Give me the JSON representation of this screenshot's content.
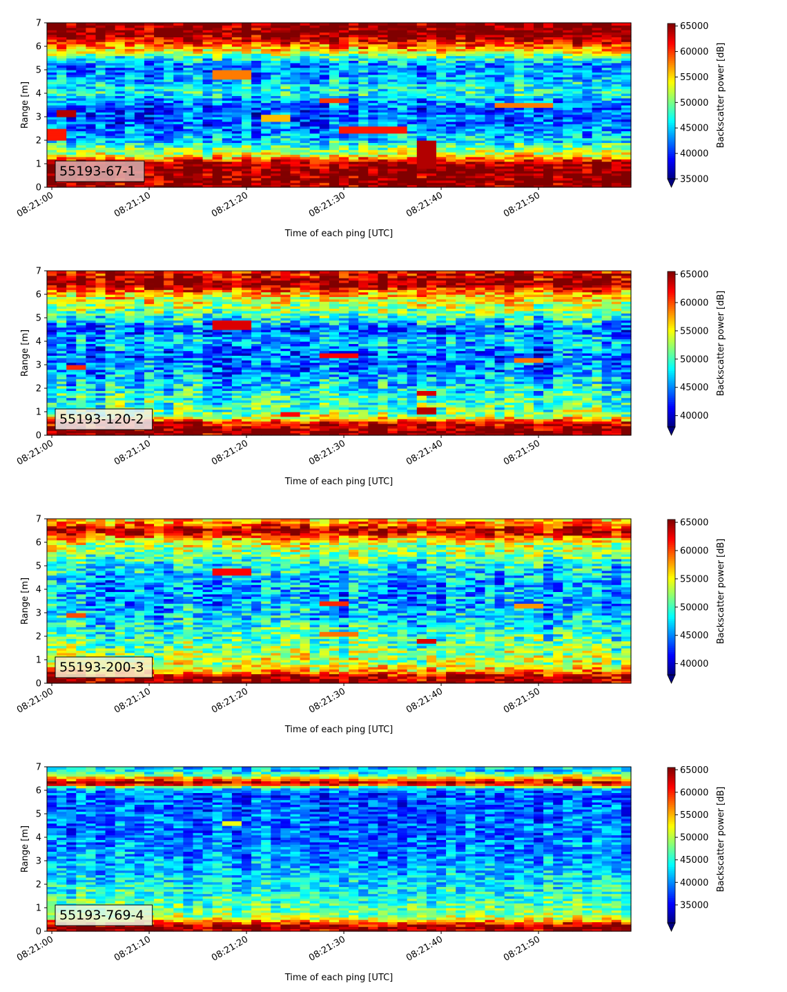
{
  "chart_data": [
    {
      "type": "heatmap",
      "label": "55193-67-1",
      "label_box_color": "#dcb0b0",
      "xlabel": "Time of each ping [UTC]",
      "ylabel": "Range [m]",
      "xticks": [
        "08:21:00",
        "08:21:10",
        "08:21:20",
        "08:21:30",
        "08:21:40",
        "08:21:50"
      ],
      "xlim_seconds": [
        -0.5,
        59.5
      ],
      "ylim": [
        0,
        7
      ],
      "yticks": [
        0,
        1,
        2,
        3,
        4,
        5,
        6,
        7
      ],
      "colorbar": {
        "label": "Backscatter power [dB]",
        "min": 35000,
        "max": 65500,
        "ticks": [
          35000,
          40000,
          45000,
          50000,
          55000,
          60000,
          65000
        ],
        "extend": "min"
      },
      "colormap": "jet",
      "range_profile": [
        [
          0.0,
          64500
        ],
        [
          0.3,
          65500
        ],
        [
          0.7,
          65500
        ],
        [
          1.05,
          64000
        ],
        [
          1.3,
          55000
        ],
        [
          1.7,
          49000
        ],
        [
          2.0,
          45000
        ],
        [
          2.6,
          42000
        ],
        [
          3.2,
          41000
        ],
        [
          3.6,
          42500
        ],
        [
          4.0,
          47000
        ],
        [
          4.4,
          45500
        ],
        [
          4.8,
          43000
        ],
        [
          5.2,
          42500
        ],
        [
          5.5,
          47500
        ],
        [
          5.9,
          56000
        ],
        [
          6.25,
          62000
        ],
        [
          6.5,
          65500
        ],
        [
          7.0,
          65500
        ]
      ],
      "features": [
        {
          "t": [
            1,
            3
          ],
          "r": [
            3.0,
            3.3
          ],
          "v": 64000
        },
        {
          "t": [
            0,
            2
          ],
          "r": [
            2.0,
            2.5
          ],
          "v": 61000
        },
        {
          "t": [
            28,
            31
          ],
          "r": [
            3.6,
            3.8
          ],
          "v": 60000
        },
        {
          "t": [
            30,
            37
          ],
          "r": [
            2.3,
            2.6
          ],
          "v": 61000
        },
        {
          "t": [
            46,
            52
          ],
          "r": [
            3.4,
            3.6
          ],
          "v": 58000
        },
        {
          "t": [
            38,
            40
          ],
          "r": [
            0.8,
            2.0
          ],
          "v": 64000
        },
        {
          "t": [
            17,
            21
          ],
          "r": [
            4.6,
            5.0
          ],
          "v": 58000
        },
        {
          "t": [
            22,
            25
          ],
          "r": [
            2.8,
            3.1
          ],
          "v": 56000
        }
      ]
    },
    {
      "type": "heatmap",
      "label": "55193-120-2",
      "label_box_color": "#eeeeee",
      "xlabel": "Time of each ping [UTC]",
      "ylabel": "Range [m]",
      "xticks": [
        "08:21:00",
        "08:21:10",
        "08:21:20",
        "08:21:30",
        "08:21:40",
        "08:21:50"
      ],
      "xlim_seconds": [
        -0.5,
        59.5
      ],
      "ylim": [
        0,
        7
      ],
      "yticks": [
        0,
        1,
        2,
        3,
        4,
        5,
        6,
        7
      ],
      "colorbar": {
        "label": "Backscatter power [dB]",
        "min": 38000,
        "max": 65500,
        "ticks": [
          40000,
          45000,
          50000,
          55000,
          60000,
          65000
        ],
        "extend": "min"
      },
      "colormap": "jet",
      "range_profile": [
        [
          0.0,
          65500
        ],
        [
          0.25,
          65500
        ],
        [
          0.55,
          63000
        ],
        [
          0.8,
          53000
        ],
        [
          1.2,
          50500
        ],
        [
          1.8,
          49000
        ],
        [
          2.3,
          47000
        ],
        [
          2.9,
          45000
        ],
        [
          3.5,
          44500
        ],
        [
          4.0,
          47000
        ],
        [
          4.5,
          44000
        ],
        [
          4.9,
          48000
        ],
        [
          5.3,
          52000
        ],
        [
          5.8,
          55000
        ],
        [
          6.1,
          58000
        ],
        [
          6.4,
          65500
        ],
        [
          6.7,
          64000
        ],
        [
          7.0,
          62000
        ]
      ],
      "features": [
        {
          "t": [
            17,
            21
          ],
          "r": [
            4.5,
            4.9
          ],
          "v": 63000
        },
        {
          "t": [
            2,
            4
          ],
          "r": [
            2.8,
            3.0
          ],
          "v": 61000
        },
        {
          "t": [
            28,
            32
          ],
          "r": [
            3.3,
            3.5
          ],
          "v": 62000
        },
        {
          "t": [
            24,
            26
          ],
          "r": [
            0.8,
            1.0
          ],
          "v": 62000
        },
        {
          "t": [
            38,
            40
          ],
          "r": [
            0.9,
            1.2
          ],
          "v": 64000
        },
        {
          "t": [
            38,
            40
          ],
          "r": [
            1.7,
            1.9
          ],
          "v": 63000
        },
        {
          "t": [
            48,
            51
          ],
          "r": [
            3.1,
            3.3
          ],
          "v": 59000
        }
      ]
    },
    {
      "type": "heatmap",
      "label": "55193-200-3",
      "label_box_color": "#f4f0d0",
      "xlabel": "Time of each ping [UTC]",
      "ylabel": "Range [m]",
      "xticks": [
        "08:21:00",
        "08:21:10",
        "08:21:20",
        "08:21:30",
        "08:21:40",
        "08:21:50"
      ],
      "xlim_seconds": [
        -0.5,
        59.5
      ],
      "ylim": [
        0,
        7
      ],
      "yticks": [
        0,
        1,
        2,
        3,
        4,
        5,
        6,
        7
      ],
      "colorbar": {
        "label": "Backscatter power [dB]",
        "min": 38000,
        "max": 65500,
        "ticks": [
          40000,
          45000,
          50000,
          55000,
          60000,
          65000
        ],
        "extend": "min"
      },
      "colormap": "jet",
      "range_profile": [
        [
          0.0,
          65500
        ],
        [
          0.3,
          64000
        ],
        [
          0.55,
          57000
        ],
        [
          0.9,
          53500
        ],
        [
          1.4,
          52000
        ],
        [
          2.0,
          50000
        ],
        [
          2.6,
          48000
        ],
        [
          3.2,
          46500
        ],
        [
          3.8,
          45500
        ],
        [
          4.4,
          46000
        ],
        [
          5.0,
          48500
        ],
        [
          5.5,
          51500
        ],
        [
          6.0,
          54000
        ],
        [
          6.3,
          60000
        ],
        [
          6.5,
          64500
        ],
        [
          6.8,
          59000
        ],
        [
          7.0,
          56000
        ]
      ],
      "features": [
        {
          "t": [
            17,
            21
          ],
          "r": [
            4.6,
            4.9
          ],
          "v": 62000
        },
        {
          "t": [
            2,
            4
          ],
          "r": [
            2.8,
            3.0
          ],
          "v": 60000
        },
        {
          "t": [
            28,
            31
          ],
          "r": [
            3.3,
            3.5
          ],
          "v": 61000
        },
        {
          "t": [
            28,
            32
          ],
          "r": [
            2.0,
            2.2
          ],
          "v": 59000
        },
        {
          "t": [
            38,
            40
          ],
          "r": [
            1.7,
            1.9
          ],
          "v": 63000
        },
        {
          "t": [
            48,
            51
          ],
          "r": [
            3.2,
            3.4
          ],
          "v": 58000
        }
      ]
    },
    {
      "type": "heatmap",
      "label": "55193-769-4",
      "label_box_color": "#e4f6e4",
      "xlabel": "Time of each ping [UTC]",
      "ylabel": "Range [m]",
      "xticks": [
        "08:21:00",
        "08:21:10",
        "08:21:20",
        "08:21:30",
        "08:21:40",
        "08:21:50"
      ],
      "xlim_seconds": [
        -0.5,
        59.5
      ],
      "ylim": [
        0,
        7
      ],
      "yticks": [
        0,
        1,
        2,
        3,
        4,
        5,
        6,
        7
      ],
      "colorbar": {
        "label": "Backscatter power [dB]",
        "min": 31000,
        "max": 65500,
        "ticks": [
          35000,
          40000,
          45000,
          50000,
          55000,
          60000,
          65000
        ],
        "extend": "min"
      },
      "colormap": "jet",
      "range_profile": [
        [
          0.0,
          62000
        ],
        [
          0.15,
          65500
        ],
        [
          0.35,
          60000
        ],
        [
          0.6,
          50000
        ],
        [
          1.0,
          47000
        ],
        [
          1.6,
          45000
        ],
        [
          2.2,
          43000
        ],
        [
          2.8,
          41000
        ],
        [
          3.4,
          40000
        ],
        [
          4.0,
          39500
        ],
        [
          4.6,
          39000
        ],
        [
          5.2,
          38500
        ],
        [
          5.8,
          38000
        ],
        [
          6.1,
          42000
        ],
        [
          6.3,
          65500
        ],
        [
          6.5,
          56000
        ],
        [
          6.8,
          43000
        ],
        [
          7.0,
          42000
        ]
      ],
      "features": [
        {
          "t": [
            18,
            20
          ],
          "r": [
            4.5,
            4.7
          ],
          "v": 52000
        }
      ]
    }
  ]
}
